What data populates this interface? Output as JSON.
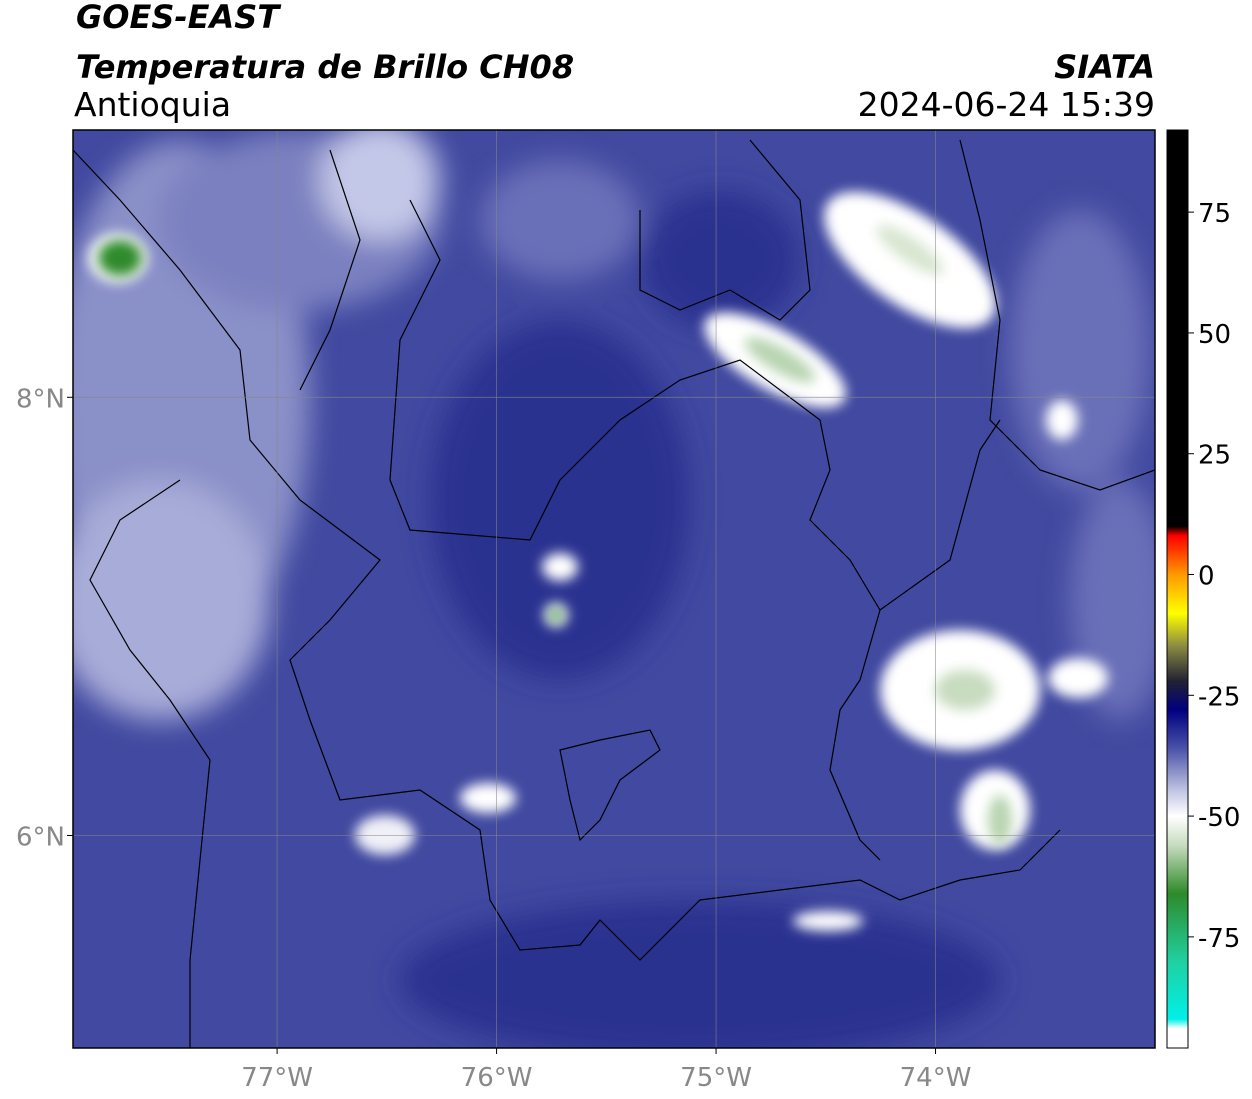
{
  "chart_data": {
    "type": "map",
    "title": "GOES-EAST",
    "subtitle": "Temperatura de Brillo CH08",
    "region": "Antioquia",
    "source": "SIATA",
    "datetime": "2024-06-24 15:39",
    "xlim": [
      -77.93,
      -73.0
    ],
    "ylim": [
      5.03,
      9.22
    ],
    "xticks": [
      {
        "value": -77,
        "label": "77°W"
      },
      {
        "value": -76,
        "label": "76°W"
      },
      {
        "value": -75,
        "label": "75°W"
      },
      {
        "value": -74,
        "label": "74°W"
      }
    ],
    "yticks": [
      {
        "value": 8,
        "label": "8°N"
      },
      {
        "value": 6,
        "label": "6°N"
      }
    ],
    "grid": true,
    "colorbar": {
      "clim": [
        -98,
        92
      ],
      "ticks": [
        75,
        50,
        25,
        0,
        -25,
        -50,
        -75
      ],
      "colormap": [
        {
          "value": 92,
          "color": "#000000"
        },
        {
          "value": 10,
          "color": "#000000"
        },
        {
          "value": 8,
          "color": "#ff0000"
        },
        {
          "value": 0,
          "color": "#ff9900"
        },
        {
          "value": -8,
          "color": "#ffff00"
        },
        {
          "value": -15,
          "color": "#888844"
        },
        {
          "value": -22,
          "color": "#222233"
        },
        {
          "value": -28,
          "color": "#000080"
        },
        {
          "value": -36,
          "color": "#4a52a8"
        },
        {
          "value": -45,
          "color": "#c4c8e4"
        },
        {
          "value": -50,
          "color": "#ffffff"
        },
        {
          "value": -56,
          "color": "#c8dcc0"
        },
        {
          "value": -66,
          "color": "#2e8a2a"
        },
        {
          "value": -80,
          "color": "#20d0a0"
        },
        {
          "value": -92,
          "color": "#00f0e8"
        },
        {
          "value": -94,
          "color": "#ffffff"
        }
      ]
    }
  }
}
